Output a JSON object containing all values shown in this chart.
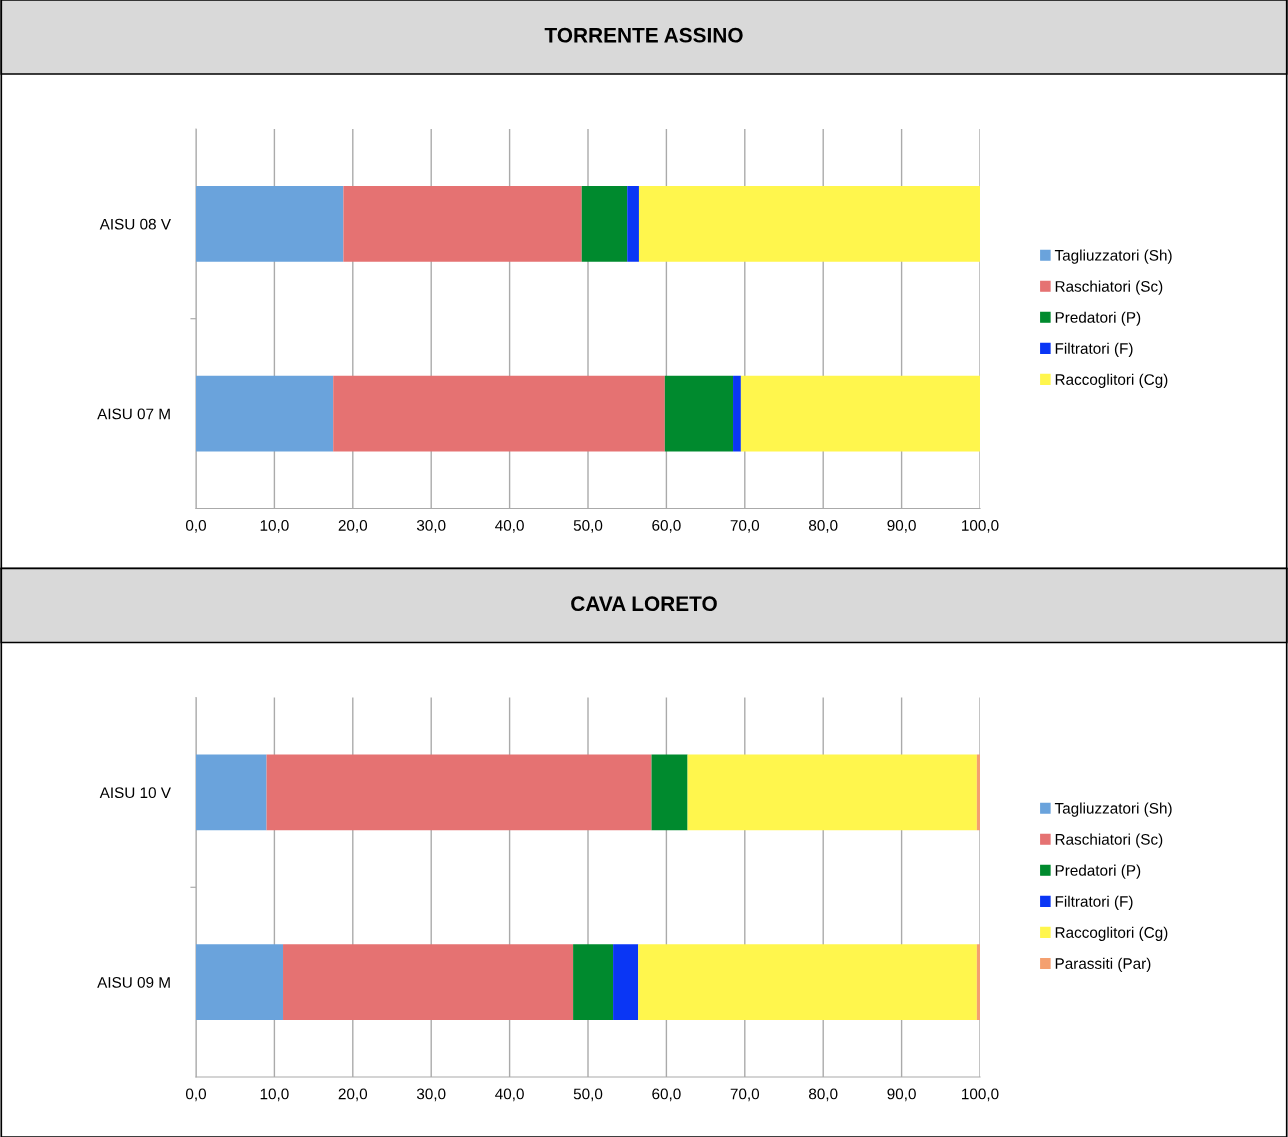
{
  "chart_data": [
    {
      "type": "bar",
      "orientation": "horizontal",
      "stacked": true,
      "title": "TORRENTE ASSINO",
      "categories": [
        "AISU 08 V",
        "AISU 07 M"
      ],
      "series": [
        {
          "name": "Tagliuzzatori (Sh)",
          "color": "#6aa3dc",
          "values": [
            18.8,
            17.5
          ]
        },
        {
          "name": "Raschiatori (Sc)",
          "color": "#e57272",
          "values": [
            30.4,
            42.3
          ]
        },
        {
          "name": "Predatori (P)",
          "color": "#008a2e",
          "values": [
            5.8,
            8.7
          ]
        },
        {
          "name": "Filtratori (F)",
          "color": "#0a36f5",
          "values": [
            1.5,
            1.0
          ]
        },
        {
          "name": "Raccoglitori (Cg)",
          "color": "#fff64d",
          "values": [
            43.5,
            30.5
          ]
        }
      ],
      "xlim": [
        0,
        100
      ],
      "xticks": [
        {
          "value": 0,
          "label": "0,0"
        },
        {
          "value": 10,
          "label": "10,0"
        },
        {
          "value": 20,
          "label": "20,0"
        },
        {
          "value": 30,
          "label": "30,0"
        },
        {
          "value": 40,
          "label": "40,0"
        },
        {
          "value": 50,
          "label": "50,0"
        },
        {
          "value": 60,
          "label": "60,0"
        },
        {
          "value": 70,
          "label": "70,0"
        },
        {
          "value": 80,
          "label": "80,0"
        },
        {
          "value": 90,
          "label": "90,0"
        },
        {
          "value": 100,
          "label": "100,0"
        }
      ],
      "grid": "x",
      "legend": "right"
    },
    {
      "type": "bar",
      "orientation": "horizontal",
      "stacked": true,
      "title": "CAVA LORETO",
      "categories": [
        "AISU 10 V",
        "AISU 09 M"
      ],
      "series": [
        {
          "name": "Tagliuzzatori (Sh)",
          "color": "#6aa3dc",
          "values": [
            9.0,
            11.1
          ]
        },
        {
          "name": "Raschiatori (Sc)",
          "color": "#e57272",
          "values": [
            49.1,
            37.0
          ]
        },
        {
          "name": "Predatori (P)",
          "color": "#008a2e",
          "values": [
            4.6,
            5.1
          ]
        },
        {
          "name": "Filtratori (F)",
          "color": "#0a36f5",
          "values": [
            0,
            3.2
          ]
        },
        {
          "name": "Raccoglitori (Cg)",
          "color": "#fff64d",
          "values": [
            36.9,
            43.2
          ]
        },
        {
          "name": "Parassiti (Par)",
          "color": "#f4a070",
          "values": [
            0.4,
            0.4
          ]
        }
      ],
      "xlim": [
        0,
        100
      ],
      "xticks": [
        {
          "value": 0,
          "label": "0,0"
        },
        {
          "value": 10,
          "label": "10,0"
        },
        {
          "value": 20,
          "label": "20,0"
        },
        {
          "value": 30,
          "label": "30,0"
        },
        {
          "value": 40,
          "label": "40,0"
        },
        {
          "value": 50,
          "label": "50,0"
        },
        {
          "value": 60,
          "label": "60,0"
        },
        {
          "value": 70,
          "label": "70,0"
        },
        {
          "value": 80,
          "label": "80,0"
        },
        {
          "value": 90,
          "label": "90,0"
        },
        {
          "value": 100,
          "label": "100,0"
        }
      ],
      "grid": "x",
      "legend": "right"
    }
  ]
}
